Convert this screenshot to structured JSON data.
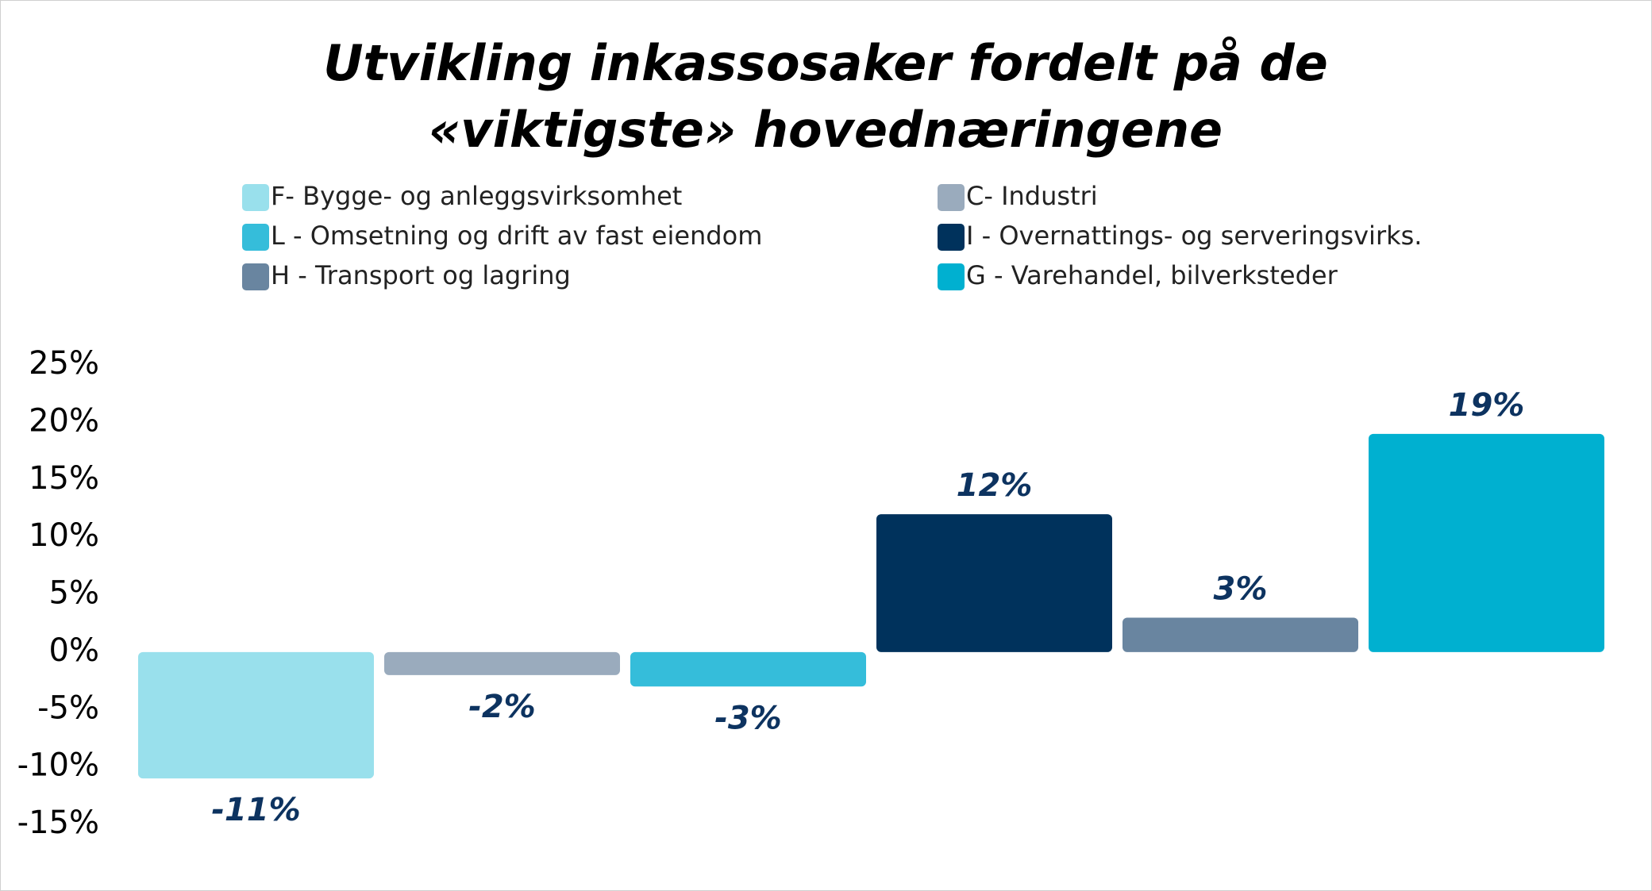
{
  "chart_data": {
    "type": "bar",
    "title": "Utvikling inkassosaker fordelt på de «viktigste» hovednæringene",
    "series": [
      {
        "name": "F- Bygge- og anleggsvirksomhet",
        "color": "#99e0ec",
        "values": [
          -11
        ],
        "value_labels": [
          "-11%"
        ]
      },
      {
        "name": "C- Industri",
        "color": "#9aabbd",
        "values": [
          -2
        ],
        "value_labels": [
          "-2%"
        ]
      },
      {
        "name": "L - Omsetning og drift av fast eiendom",
        "color": "#35bdda",
        "values": [
          -3
        ],
        "value_labels": [
          "-3%"
        ]
      },
      {
        "name": "I - Overnattings- og serveringsvirks.",
        "color": "#00325c",
        "values": [
          12
        ],
        "value_labels": [
          "12%"
        ]
      },
      {
        "name": "H - Transport og lagring",
        "color": "#6985a0",
        "values": [
          3
        ],
        "value_labels": [
          "3%"
        ]
      },
      {
        "name": "G - Varehandel, bilverksteder",
        "color": "#00b0d0",
        "values": [
          19
        ],
        "value_labels": [
          "19%"
        ]
      }
    ],
    "ylim": [
      -15,
      25
    ],
    "yticks": [
      {
        "value": -15,
        "label": "-15%"
      },
      {
        "value": -10,
        "label": "-10%"
      },
      {
        "value": -5,
        "label": "-5%"
      },
      {
        "value": 0,
        "label": "0%"
      },
      {
        "value": 5,
        "label": "5%"
      },
      {
        "value": 10,
        "label": "10%"
      },
      {
        "value": 15,
        "label": "15%"
      },
      {
        "value": 20,
        "label": "20%"
      },
      {
        "value": 25,
        "label": "25%"
      }
    ],
    "grid": false,
    "value_label_color": "#0d3360"
  }
}
